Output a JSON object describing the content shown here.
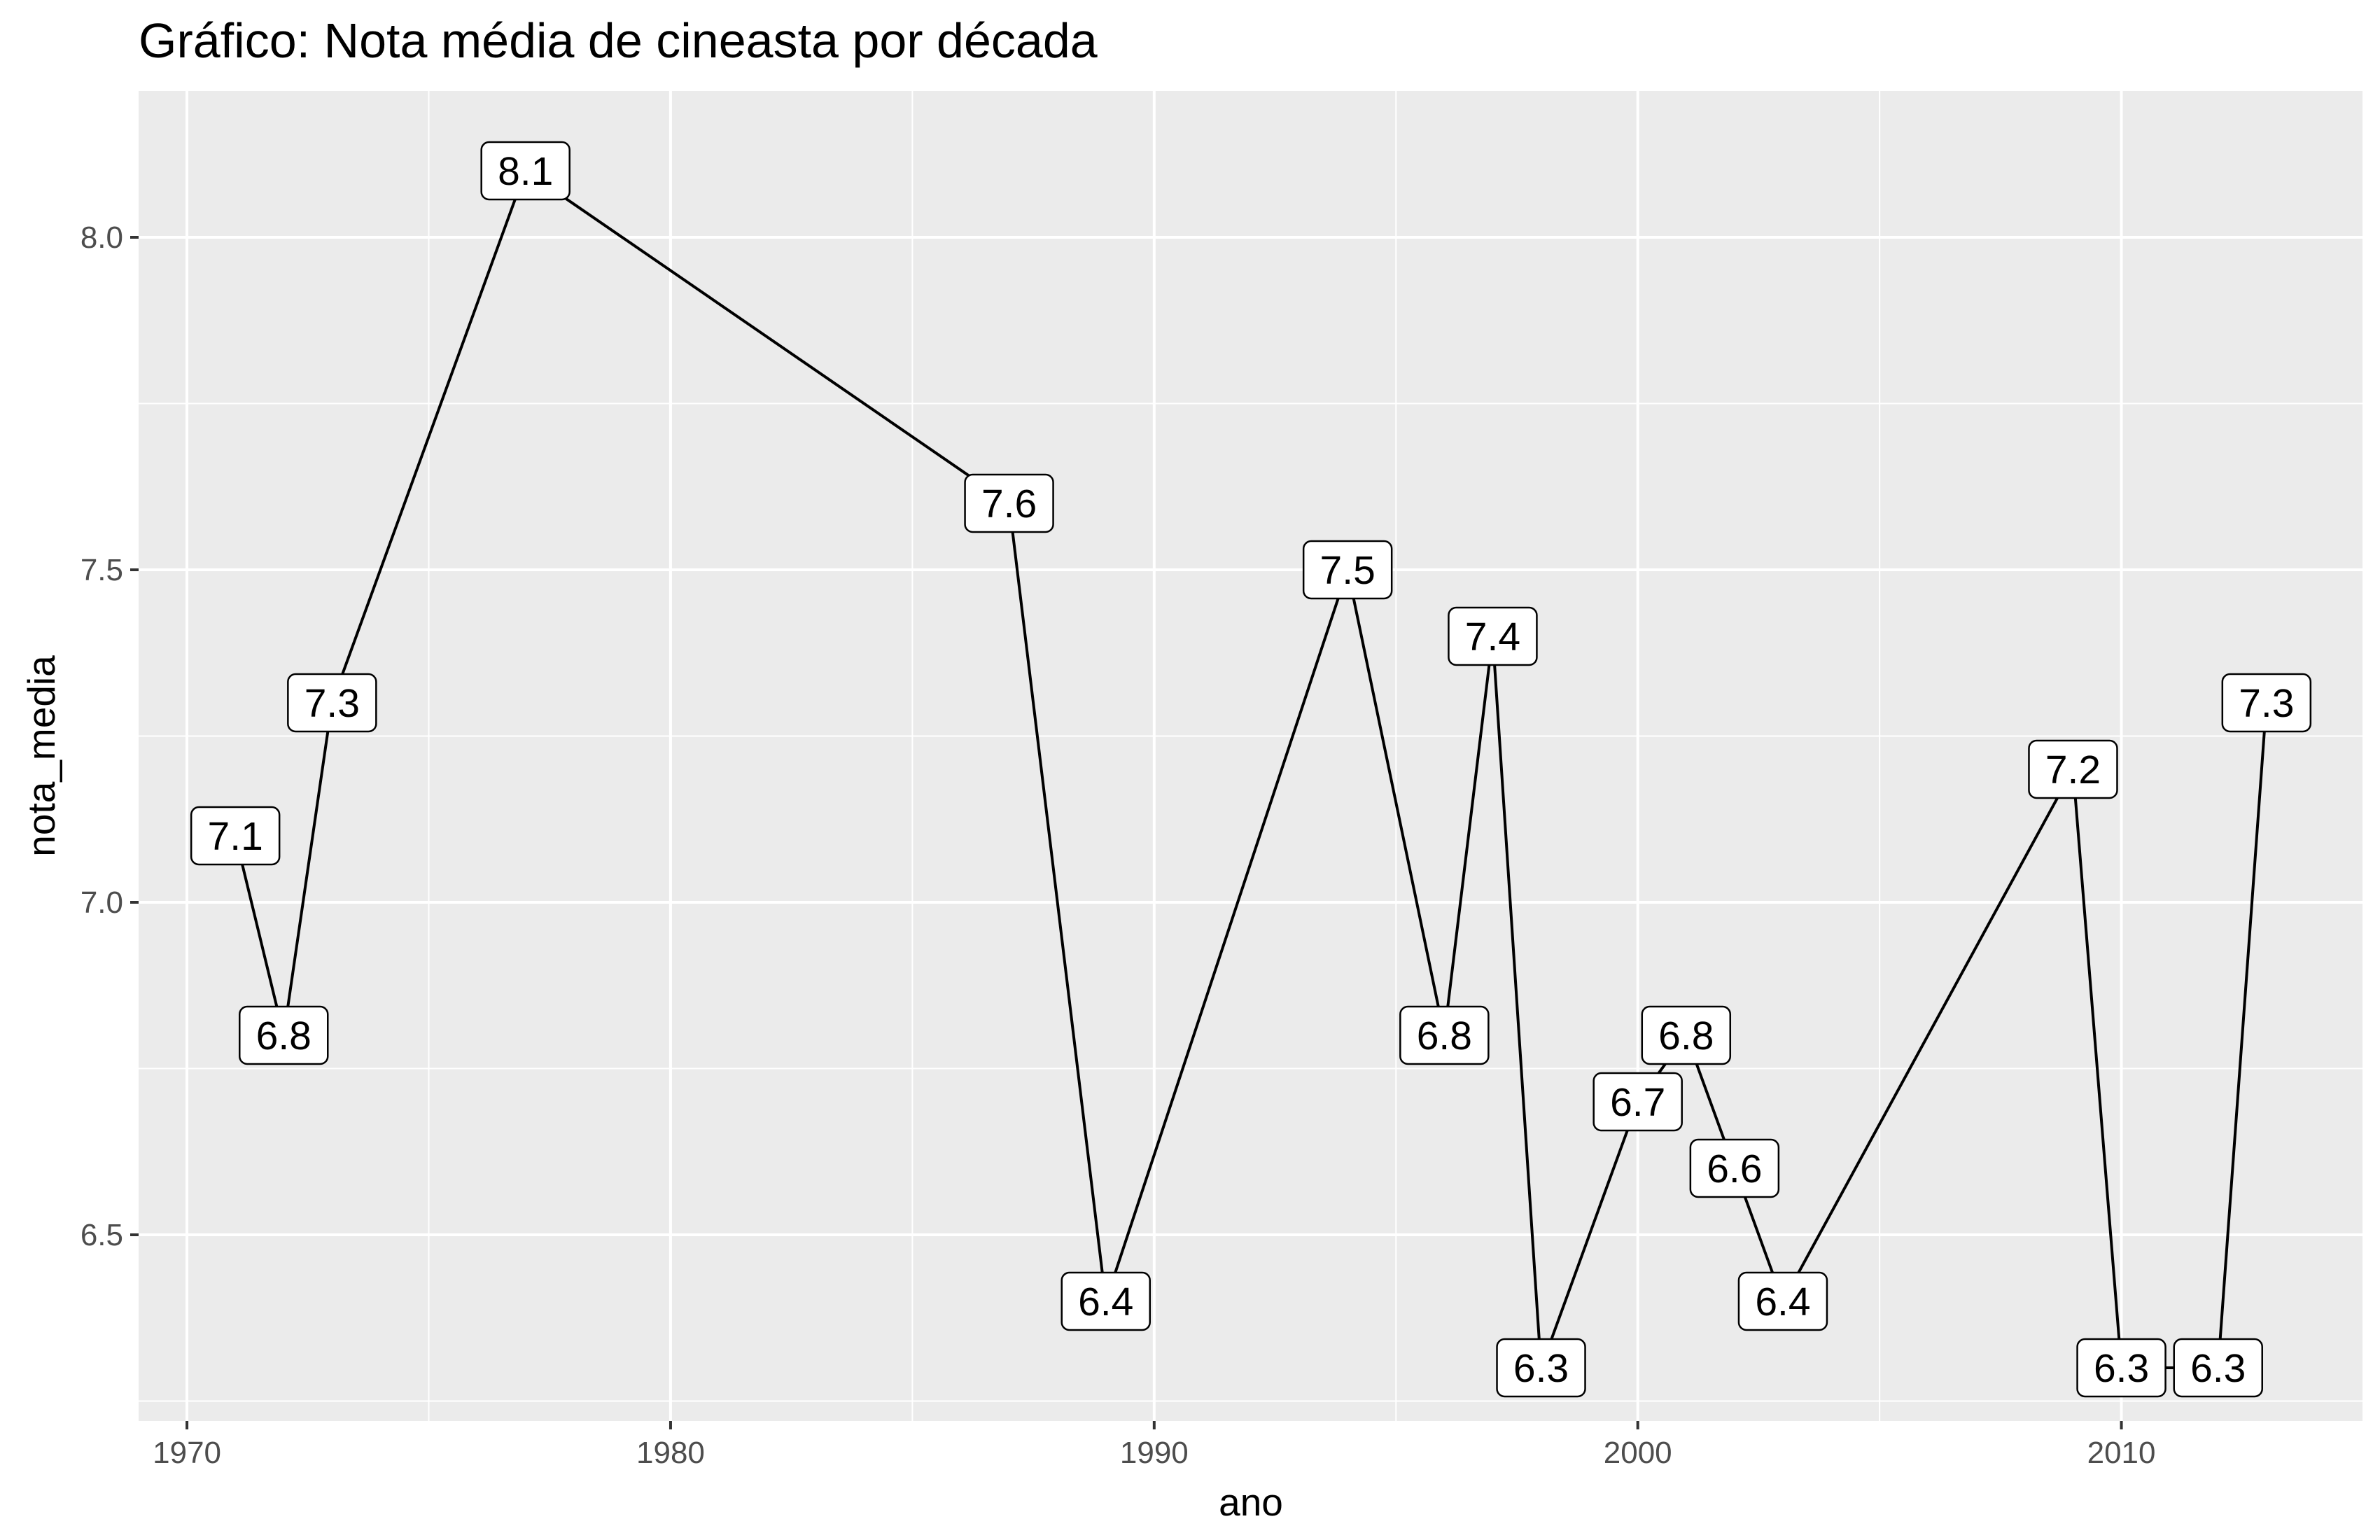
{
  "chart_data": {
    "type": "line",
    "title": "Gráfico: Nota média de cineasta por década",
    "xlabel": "ano",
    "ylabel": "nota_media",
    "xlim": [
      1969,
      2015
    ],
    "ylim": [
      6.22,
      8.22
    ],
    "x_ticks": [
      1970,
      1980,
      1990,
      2000,
      2010
    ],
    "y_ticks": [
      6.5,
      7.0,
      7.5,
      8.0
    ],
    "y_tick_labels": [
      "6.5",
      "7.0",
      "7.5",
      "8.0"
    ],
    "grid": true,
    "legend": "none",
    "colors": {
      "panel": "#ebebeb",
      "grid_major": "#ffffff",
      "line": "#000000",
      "tick_text": "#4d4d4d"
    },
    "series": [
      {
        "x": [
          1971,
          1972,
          1973,
          1977,
          1987,
          1989,
          1994,
          1996,
          1997,
          1998,
          2000,
          2001,
          2002,
          2003,
          2009,
          2010,
          2012,
          2013
        ],
        "y": [
          7.1,
          6.8,
          7.3,
          8.1,
          7.6,
          6.4,
          7.5,
          6.8,
          7.4,
          6.3,
          6.7,
          6.8,
          6.6,
          6.4,
          7.2,
          6.3,
          6.3,
          7.3
        ],
        "labels": [
          "7.1",
          "6.8",
          "7.3",
          "8.1",
          "7.6",
          "6.4",
          "7.5",
          "6.8",
          "7.4",
          "6.3",
          "6.7",
          "6.8",
          "6.6",
          "6.4",
          "7.2",
          "6.3",
          "6.3",
          "7.3"
        ]
      }
    ]
  }
}
